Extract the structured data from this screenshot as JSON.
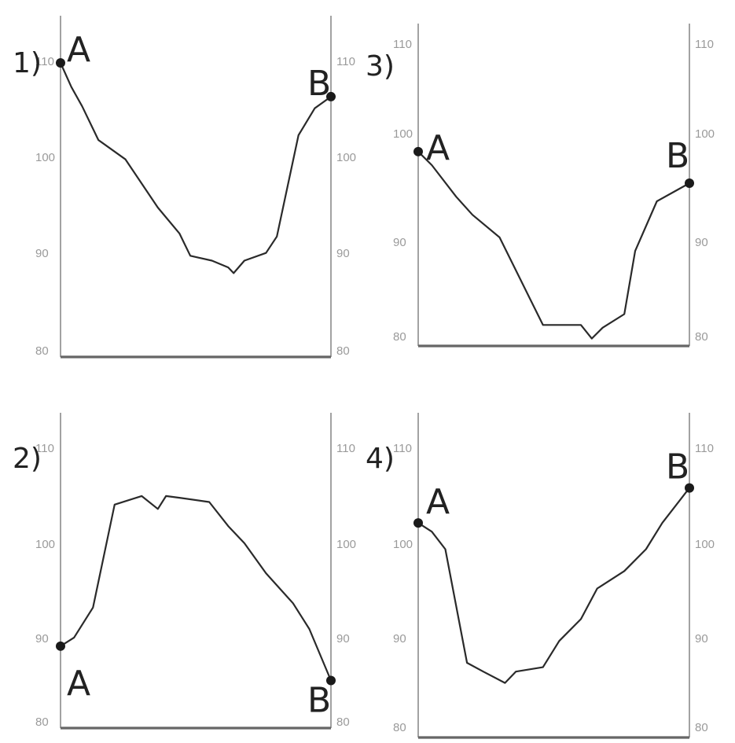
{
  "chart_data": [
    {
      "type": "line",
      "panel_label": "1)",
      "ylim": [
        80,
        110
      ],
      "yticks": [
        "110",
        "100",
        "90",
        "80"
      ],
      "start_label": "A",
      "end_label": "B",
      "series": [
        {
          "x": [
            0,
            0.04,
            0.08,
            0.14,
            0.24,
            0.36,
            0.44,
            0.48,
            0.56,
            0.62,
            0.64,
            0.68,
            0.76,
            0.8,
            0.88,
            0.94,
            1.0
          ],
          "y": [
            110,
            107.5,
            105.5,
            102,
            100,
            95,
            92.3,
            90,
            89.5,
            88.8,
            88.2,
            89.5,
            90.3,
            92,
            102.5,
            105.3,
            106.5
          ]
        }
      ]
    },
    {
      "type": "line",
      "panel_label": "3)",
      "ylim": [
        80,
        113
      ],
      "yticks": [
        "110",
        "100",
        "90",
        "80"
      ],
      "start_label": "A",
      "end_label": "B",
      "series": [
        {
          "x": [
            0,
            0.05,
            0.14,
            0.2,
            0.3,
            0.46,
            0.52,
            0.6,
            0.64,
            0.68,
            0.76,
            0.8,
            0.88,
            0.94,
            1.0
          ],
          "y": [
            101,
            99.5,
            96,
            94,
            91.5,
            81.8,
            81.8,
            81.8,
            80.3,
            81.5,
            83,
            90,
            95.5,
            96.5,
            97.5
          ]
        }
      ]
    },
    {
      "type": "line",
      "panel_label": "2)",
      "ylim": [
        80,
        113
      ],
      "yticks": [
        "110",
        "100",
        "90",
        "80"
      ],
      "start_label": "A",
      "end_label": "B",
      "series": [
        {
          "x": [
            0,
            0.05,
            0.12,
            0.2,
            0.3,
            0.36,
            0.39,
            0.44,
            0.55,
            0.62,
            0.68,
            0.76,
            0.86,
            0.92,
            1.0
          ],
          "y": [
            89,
            90,
            93.5,
            105.5,
            106.5,
            105,
            106.5,
            106.3,
            105.8,
            103,
            101,
            97.5,
            94,
            91,
            85
          ]
        }
      ]
    },
    {
      "type": "line",
      "panel_label": "4)",
      "ylim": [
        80,
        113
      ],
      "yticks": [
        "110",
        "100",
        "90",
        "80"
      ],
      "start_label": "A",
      "end_label": "B",
      "series": [
        {
          "x": [
            0,
            0.05,
            0.1,
            0.18,
            0.24,
            0.32,
            0.36,
            0.46,
            0.52,
            0.6,
            0.66,
            0.76,
            0.84,
            0.9,
            1.0
          ],
          "y": [
            104,
            103,
            101,
            88,
            87,
            85.7,
            87,
            87.5,
            90.5,
            93,
            96.5,
            98.5,
            101,
            104,
            108
          ]
        }
      ]
    }
  ]
}
